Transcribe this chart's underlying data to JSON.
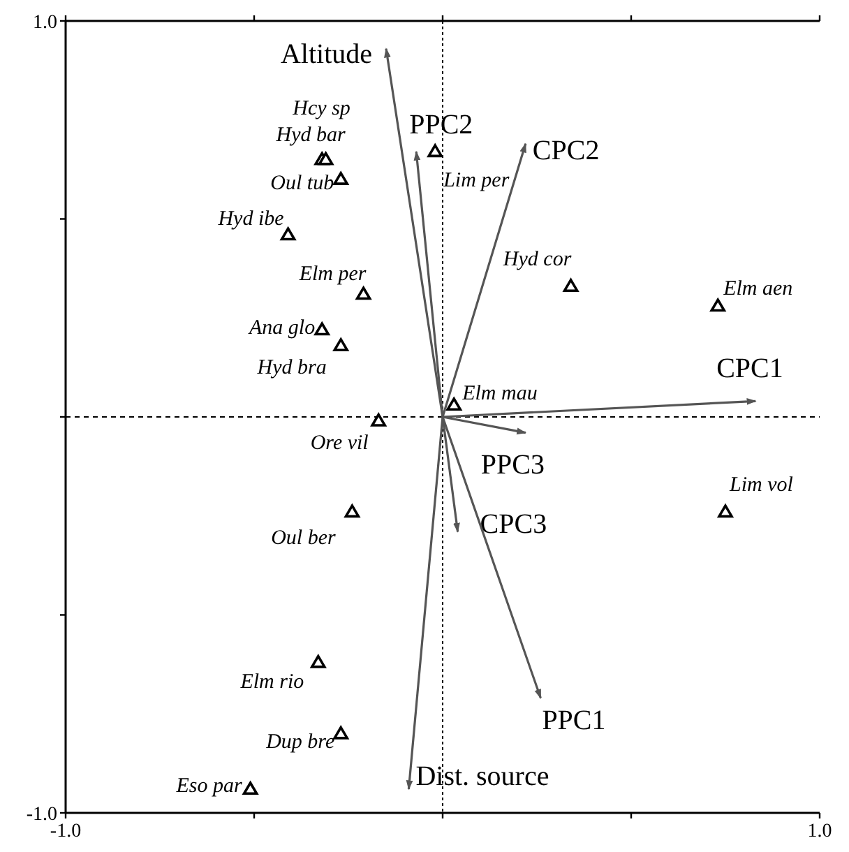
{
  "chart_data": {
    "type": "scatter",
    "xlim": [
      -1,
      1
    ],
    "ylim": [
      -1,
      1
    ],
    "xticks": [
      {
        "value": -1,
        "label": "-1.0"
      },
      {
        "value": -0.5,
        "label": null
      },
      {
        "value": 0,
        "label": null
      },
      {
        "value": 0.5,
        "label": null
      },
      {
        "value": 1,
        "label": "1.0"
      }
    ],
    "yticks": [
      {
        "value": -1,
        "label": "-1.0"
      },
      {
        "value": -0.5,
        "label": null
      },
      {
        "value": 0,
        "label": null
      },
      {
        "value": 0.5,
        "label": null
      },
      {
        "value": 1,
        "label": "1.0"
      }
    ],
    "grid": false,
    "ref_lines": [
      {
        "axis": "x",
        "value": 0,
        "label": null,
        "color": "#000000",
        "line_style": "dotted"
      },
      {
        "axis": "y",
        "value": 0,
        "label": null,
        "color": "#000000",
        "line_style": "dashed"
      }
    ],
    "series": [
      {
        "color": "#000000",
        "marker": "triangle",
        "x": [
          -0.32,
          -0.31,
          -0.02,
          -0.27,
          -0.41,
          -0.21,
          -0.32,
          -0.27,
          0.34,
          0.73,
          0.03,
          -0.17,
          -0.24,
          0.75,
          -0.33,
          -0.27,
          -0.51
        ],
        "values": [
          0.65,
          0.65,
          0.67,
          0.6,
          0.46,
          0.31,
          0.22,
          0.18,
          0.33,
          0.28,
          0.03,
          -0.01,
          -0.24,
          -0.24,
          -0.62,
          -0.8,
          -0.94
        ]
      },
      {
        "type": "line",
        "name": "Altitude",
        "color": "#555555",
        "marker": "none",
        "x": [
          0,
          -0.15
        ],
        "values": [
          0,
          0.93
        ]
      },
      {
        "type": "line",
        "name": "PPC2",
        "color": "#555555",
        "marker": "none",
        "x": [
          0,
          -0.07
        ],
        "values": [
          0,
          0.67
        ]
      },
      {
        "type": "line",
        "name": "CPC2",
        "color": "#555555",
        "marker": "none",
        "x": [
          0,
          0.22
        ],
        "values": [
          0,
          0.69
        ]
      },
      {
        "type": "line",
        "name": "CPC1",
        "color": "#555555",
        "marker": "none",
        "x": [
          0,
          0.83
        ],
        "values": [
          0,
          0.04
        ]
      },
      {
        "type": "line",
        "name": "PPC3",
        "color": "#555555",
        "marker": "none",
        "x": [
          0,
          0.22
        ],
        "values": [
          0,
          -0.04
        ]
      },
      {
        "type": "line",
        "name": "CPC3",
        "color": "#555555",
        "marker": "none",
        "x": [
          0,
          0.04
        ],
        "values": [
          0,
          -0.29
        ]
      },
      {
        "type": "line",
        "name": "PPC1",
        "color": "#555555",
        "marker": "none",
        "x": [
          0,
          0.26
        ],
        "values": [
          0,
          -0.71
        ]
      },
      {
        "type": "line",
        "name": "Dist. source",
        "color": "#555555",
        "marker": "none",
        "x": [
          0,
          -0.09
        ],
        "values": [
          0,
          -0.94
        ]
      }
    ],
    "annotations": [
      {
        "text": "Hyd bar",
        "x": -0.32,
        "y": 0.65
      },
      {
        "text": "Hcy sp",
        "x": -0.31,
        "y": 0.65
      },
      {
        "text": "Lim per",
        "x": -0.02,
        "y": 0.67
      },
      {
        "text": "Oul tub",
        "x": -0.27,
        "y": 0.6
      },
      {
        "text": "Hyd ibe",
        "x": -0.41,
        "y": 0.46
      },
      {
        "text": "Elm per",
        "x": -0.21,
        "y": 0.31
      },
      {
        "text": "Ana glo",
        "x": -0.32,
        "y": 0.22
      },
      {
        "text": "Hyd bra",
        "x": -0.27,
        "y": 0.18
      },
      {
        "text": "Hyd cor",
        "x": 0.34,
        "y": 0.33
      },
      {
        "text": "Elm aen",
        "x": 0.73,
        "y": 0.28
      },
      {
        "text": "Elm mau",
        "x": 0.03,
        "y": 0.03
      },
      {
        "text": "Ore vil",
        "x": -0.17,
        "y": -0.01
      },
      {
        "text": "Oul ber",
        "x": -0.24,
        "y": -0.24
      },
      {
        "text": "Lim vol",
        "x": 0.75,
        "y": -0.24
      },
      {
        "text": "Elm rio",
        "x": -0.33,
        "y": -0.62
      },
      {
        "text": "Dup bre",
        "x": -0.27,
        "y": -0.8
      },
      {
        "text": "Eso par",
        "x": -0.51,
        "y": -0.94
      }
    ]
  }
}
